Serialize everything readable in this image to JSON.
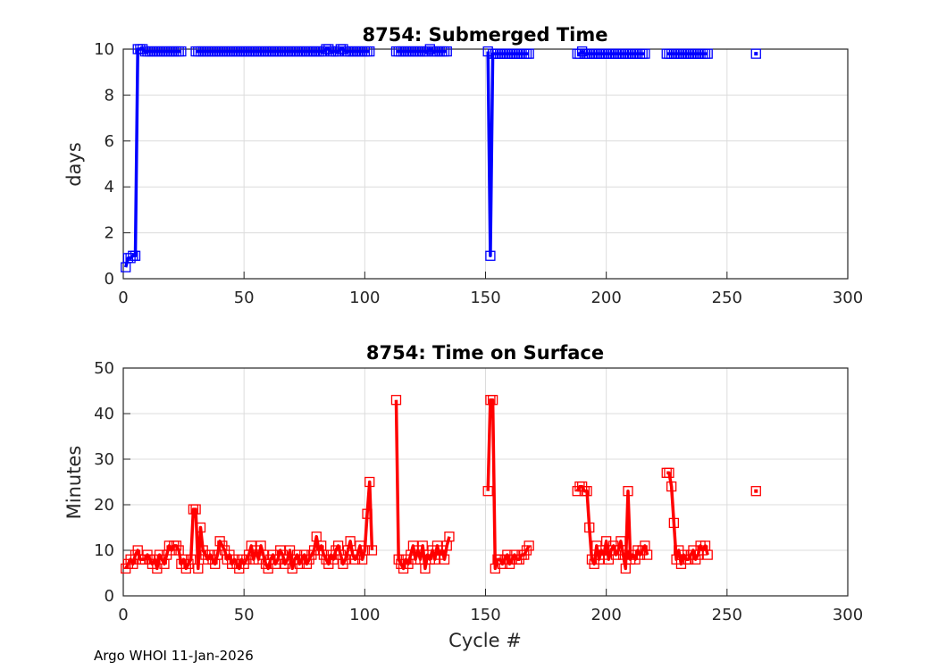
{
  "footer": "Argo WHOI 11-Jan-2026",
  "chart_data": [
    {
      "type": "line",
      "title": "8754: Submerged Time",
      "xlabel": "",
      "ylabel": "days",
      "xlim": [
        0,
        300
      ],
      "ylim": [
        0,
        10
      ],
      "xticks": [
        0,
        50,
        100,
        150,
        200,
        250,
        300
      ],
      "yticks": [
        0,
        2,
        4,
        6,
        8,
        10
      ],
      "grid": true,
      "color": "#0000ff",
      "marker": "square",
      "segments": [
        {
          "start": 1,
          "values": [
            0.5,
            0.9,
            0.9,
            1.0,
            1.0,
            10.0,
            10.0,
            10.0,
            9.9,
            9.9,
            9.9,
            9.9,
            9.9,
            9.9,
            9.9,
            9.9,
            9.9,
            9.9,
            9.9,
            9.9,
            9.9,
            9.9,
            9.9,
            9.9
          ]
        },
        {
          "start": 30,
          "values": [
            9.9,
            9.9,
            9.9,
            9.9,
            9.9,
            9.9,
            9.9,
            9.9,
            9.9,
            9.9,
            9.9,
            9.9,
            9.9,
            9.9,
            9.9,
            9.9,
            9.9,
            9.9,
            9.9,
            9.9,
            9.9,
            9.9,
            9.9,
            9.9,
            9.9,
            9.9,
            9.9,
            9.9,
            9.9,
            9.9,
            9.9,
            9.9,
            9.9,
            9.9,
            9.9,
            9.9,
            9.9,
            9.9,
            9.9,
            9.9,
            9.9,
            9.9,
            9.9,
            9.9,
            9.9,
            9.9,
            9.9,
            9.9,
            9.9,
            9.9,
            9.9,
            9.9,
            9.9,
            9.9,
            10.0,
            10.0,
            9.9,
            9.9,
            9.9,
            9.9,
            10.0,
            10.0,
            9.9,
            9.9,
            9.9,
            9.9,
            9.9,
            9.9,
            9.9,
            9.9,
            9.9,
            9.9,
            9.9
          ]
        },
        {
          "start": 113,
          "values": [
            9.9,
            9.9,
            9.9,
            9.9,
            9.9,
            9.9,
            9.9,
            9.9,
            9.9,
            9.9,
            9.9,
            9.9,
            9.9,
            9.9,
            10.0,
            9.9,
            9.9,
            9.9,
            9.9,
            9.9,
            9.9,
            9.9
          ]
        },
        {
          "start": 151,
          "values": [
            9.9,
            1.0,
            9.8,
            9.8,
            9.8,
            9.8,
            9.8,
            9.8,
            9.8,
            9.8,
            9.8,
            9.8,
            9.8,
            9.8,
            9.8,
            9.8,
            9.8,
            9.8
          ]
        },
        {
          "start": 188,
          "values": [
            9.8,
            9.8,
            9.9,
            9.8,
            9.8,
            9.8,
            9.8,
            9.8,
            9.8,
            9.8,
            9.8,
            9.8,
            9.8,
            9.8,
            9.8,
            9.8,
            9.8,
            9.8,
            9.8,
            9.8,
            9.8,
            9.8,
            9.8,
            9.8,
            9.8,
            9.8,
            9.8,
            9.8,
            9.8
          ]
        },
        {
          "start": 225,
          "values": [
            9.8,
            9.8,
            9.8,
            9.8,
            9.8,
            9.8,
            9.8,
            9.8,
            9.8,
            9.8,
            9.8,
            9.8,
            9.8,
            9.8,
            9.8,
            9.8,
            9.8,
            9.8
          ]
        },
        {
          "start": 262,
          "values": [
            9.8
          ]
        }
      ]
    },
    {
      "type": "line",
      "title": "8754: Time on Surface",
      "xlabel": "Cycle #",
      "ylabel": "Minutes",
      "xlim": [
        0,
        300
      ],
      "ylim": [
        0,
        50
      ],
      "xticks": [
        0,
        50,
        100,
        150,
        200,
        250,
        300
      ],
      "yticks": [
        0,
        10,
        20,
        30,
        40,
        50
      ],
      "grid": true,
      "color": "#ff0000",
      "marker": "square",
      "segments": [
        {
          "start": 1,
          "values": [
            6,
            7,
            8,
            7,
            9,
            10,
            8,
            8,
            8,
            9,
            8,
            7,
            8,
            6,
            9,
            8,
            7,
            9,
            11,
            10,
            11,
            11,
            10,
            7,
            8,
            6,
            7,
            8,
            19,
            19,
            6,
            15,
            10,
            9,
            8,
            9,
            8,
            7,
            9,
            12,
            11,
            10,
            8,
            9,
            7,
            8,
            7,
            6,
            8,
            7,
            8,
            9,
            11,
            8,
            10,
            8,
            11,
            9,
            7,
            6,
            8,
            9,
            7,
            8,
            10,
            9,
            7,
            8,
            10,
            6,
            8,
            9,
            7,
            8,
            9,
            7,
            8,
            9,
            10,
            13,
            10,
            11,
            9,
            8,
            7,
            9,
            8,
            10,
            11,
            9,
            7,
            8,
            10,
            12,
            9,
            8,
            9,
            11,
            8,
            10,
            18,
            25,
            10
          ]
        },
        {
          "start": 113,
          "values": [
            43,
            8,
            7,
            6,
            8,
            7,
            9,
            11,
            8,
            10,
            8,
            11,
            6,
            9,
            8,
            10,
            8,
            11,
            9,
            10,
            8,
            11,
            13
          ]
        },
        {
          "start": 151,
          "values": [
            23,
            43,
            43,
            6,
            8,
            8,
            7,
            8,
            9,
            7,
            8,
            9,
            8,
            8,
            9,
            9,
            10,
            11
          ]
        },
        {
          "start": 188,
          "values": [
            23,
            24,
            24,
            23,
            23,
            15,
            8,
            7,
            11,
            8,
            10,
            9,
            12,
            8,
            10,
            11,
            9,
            10,
            12,
            9,
            6,
            23,
            8,
            9,
            8,
            10,
            9,
            10,
            11,
            9
          ]
        },
        {
          "start": 225,
          "values": [
            27,
            27,
            24,
            16,
            8,
            10,
            7,
            9,
            8,
            8,
            9,
            10,
            8,
            9,
            11,
            10,
            11,
            9
          ]
        },
        {
          "start": 262,
          "values": [
            23
          ]
        }
      ]
    }
  ]
}
